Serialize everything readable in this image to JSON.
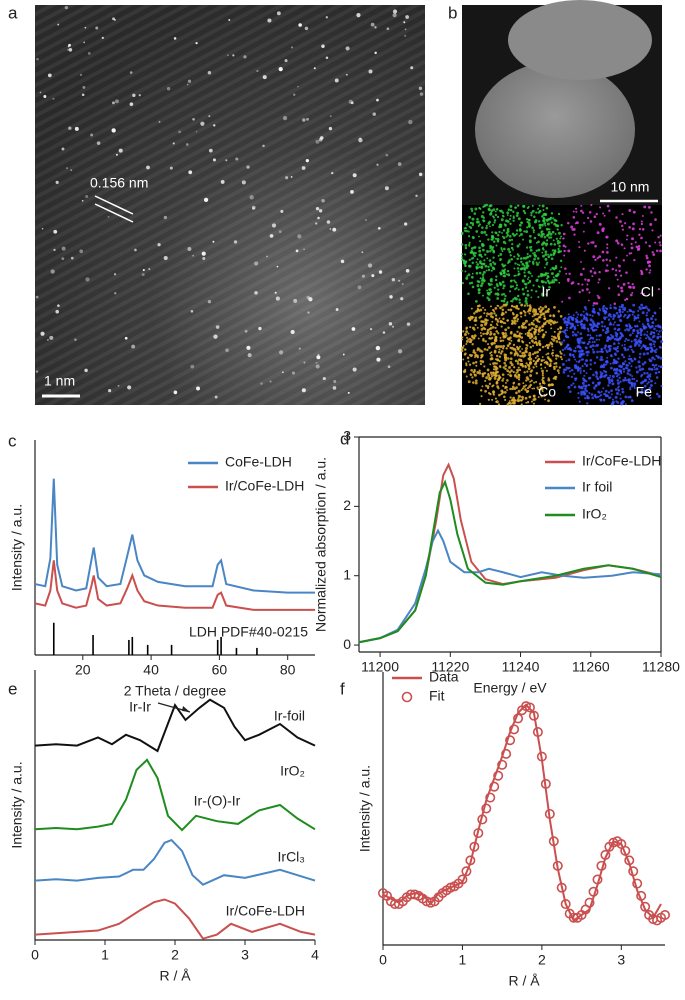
{
  "images": [
    {
      "label": "a",
      "annotation": "0.156 nm",
      "scale_bar": "1 nm"
    },
    {
      "label": "b",
      "scale_bar": "10 nm",
      "maps": [
        "Ir",
        "Cl",
        "Co",
        "Fe"
      ]
    }
  ],
  "chart_data": [
    {
      "type": "line",
      "label": "c",
      "xlabel": "2 Theta / degree",
      "ylabel": "Intensity / a.u.",
      "xlim": [
        6,
        88
      ],
      "xticks": [
        20,
        40,
        60,
        80
      ],
      "ylim": [
        0,
        10
      ],
      "series": [
        {
          "name": "CoFe-LDH",
          "color": "#4a86c5",
          "x": [
            6,
            9,
            10.5,
            11.5,
            12.5,
            14,
            18,
            21,
            22.5,
            23.2,
            24.5,
            27,
            31,
            33,
            34.5,
            36,
            38,
            42,
            50,
            58,
            59.5,
            60.5,
            62,
            70,
            80,
            88
          ],
          "values": [
            3.3,
            3.2,
            4.5,
            8.2,
            4.2,
            3.2,
            3.0,
            3.1,
            4.4,
            5.0,
            3.6,
            3.2,
            3.3,
            4.6,
            5.6,
            4.4,
            3.7,
            3.4,
            3.2,
            3.2,
            4.2,
            4.4,
            3.3,
            3.0,
            2.9,
            2.9
          ]
        },
        {
          "name": "Ir/CoFe-LDH",
          "color": "#c9504e",
          "x": [
            6,
            9,
            10.5,
            11.5,
            12.5,
            14,
            18,
            21,
            22.5,
            23.2,
            24.5,
            27,
            31,
            33,
            34.5,
            36,
            38,
            42,
            50,
            58,
            59.5,
            60.5,
            62,
            70,
            80,
            88
          ],
          "values": [
            2.4,
            2.3,
            3.0,
            4.4,
            3.0,
            2.4,
            2.2,
            2.3,
            3.2,
            3.7,
            2.6,
            2.3,
            2.4,
            3.1,
            3.7,
            3.0,
            2.5,
            2.3,
            2.2,
            2.2,
            2.8,
            2.9,
            2.3,
            2.1,
            2.1,
            2.1
          ]
        },
        {
          "name": "LDH PDF#40-0215",
          "color": "#000000",
          "style": "stem",
          "x": [
            11.5,
            23,
            33.5,
            34.5,
            39,
            46,
            59.5,
            60.5,
            65,
            71
          ],
          "values": [
            1.5,
            0.93,
            0.7,
            0.84,
            0.47,
            0.47,
            0.7,
            0.84,
            0.33,
            0.33
          ]
        }
      ]
    },
    {
      "type": "line",
      "label": "d",
      "xlabel": "Energy / eV",
      "ylabel": "Normalized absorption / a.u.",
      "xlim": [
        11194,
        11280
      ],
      "xticks": [
        11200,
        11220,
        11240,
        11260,
        11280
      ],
      "ylim": [
        -0.1,
        3
      ],
      "yticks": [
        0,
        1,
        2,
        3
      ],
      "series": [
        {
          "name": "Ir/CoFe-LDH",
          "color": "#c9504e",
          "x": [
            11194,
            11200,
            11205,
            11210,
            11213,
            11216,
            11218,
            11219.5,
            11221,
            11223,
            11226,
            11230,
            11235,
            11240,
            11250,
            11258,
            11265,
            11272,
            11280
          ],
          "values": [
            0.04,
            0.1,
            0.2,
            0.5,
            1.0,
            1.8,
            2.45,
            2.6,
            2.4,
            1.8,
            1.2,
            0.95,
            0.88,
            0.92,
            0.97,
            1.08,
            1.15,
            1.1,
            1.0
          ]
        },
        {
          "name": "Ir foil",
          "color": "#4a86c5",
          "x": [
            11194,
            11200,
            11205,
            11210,
            11213,
            11215,
            11216.5,
            11218,
            11220,
            11224,
            11228,
            11231,
            11235,
            11240,
            11246,
            11252,
            11258,
            11266,
            11272,
            11280
          ],
          "values": [
            0.04,
            0.1,
            0.22,
            0.6,
            1.1,
            1.5,
            1.65,
            1.5,
            1.2,
            1.05,
            1.05,
            1.1,
            1.05,
            0.98,
            1.05,
            1.0,
            0.97,
            1.0,
            1.05,
            1.02
          ]
        },
        {
          "name": "IrO₂",
          "color": "#1e8c1e",
          "x": [
            11194,
            11200,
            11205,
            11210,
            11213,
            11215,
            11217,
            11218.5,
            11220,
            11222,
            11225,
            11230,
            11235,
            11240,
            11250,
            11258,
            11265,
            11272,
            11280
          ],
          "values": [
            0.04,
            0.1,
            0.2,
            0.5,
            1.0,
            1.6,
            2.2,
            2.35,
            2.1,
            1.6,
            1.1,
            0.9,
            0.87,
            0.92,
            1.0,
            1.1,
            1.15,
            1.1,
            0.98
          ]
        }
      ]
    },
    {
      "type": "line",
      "label": "e",
      "xlabel": "R / Å",
      "ylabel": "Intensity / a.u.",
      "xlim": [
        0,
        4
      ],
      "xticks": [
        0,
        1,
        2,
        3,
        4
      ],
      "ylim": [
        0,
        10
      ],
      "annotations": [
        "Ir-Ir",
        "Ir-(O)-Ir"
      ],
      "series": [
        {
          "name": "Ir-foil",
          "color": "#111111",
          "x": [
            0,
            0.3,
            0.6,
            0.9,
            1.1,
            1.3,
            1.5,
            1.75,
            2.0,
            2.15,
            2.35,
            2.5,
            2.7,
            2.85,
            3.0,
            3.2,
            3.5,
            3.75,
            4.0
          ],
          "values": [
            7.2,
            7.25,
            7.2,
            7.5,
            7.25,
            7.6,
            7.4,
            7.0,
            8.7,
            8.15,
            8.6,
            8.9,
            8.6,
            7.9,
            7.4,
            7.6,
            8.0,
            7.5,
            7.2
          ]
        },
        {
          "name": "IrO₂",
          "color": "#1e8c1e",
          "x": [
            0,
            0.3,
            0.6,
            0.9,
            1.1,
            1.3,
            1.45,
            1.6,
            1.75,
            1.9,
            2.1,
            2.3,
            2.6,
            2.9,
            3.2,
            3.5,
            3.75,
            4.0
          ],
          "values": [
            4.1,
            4.15,
            4.1,
            4.2,
            4.3,
            5.2,
            6.3,
            6.67,
            6.0,
            4.6,
            4.07,
            4.6,
            4.4,
            4.3,
            4.8,
            5.0,
            4.5,
            4.1
          ]
        },
        {
          "name": "IrCl₃",
          "color": "#4a86c5",
          "x": [
            0,
            0.3,
            0.6,
            0.9,
            1.2,
            1.4,
            1.55,
            1.7,
            1.85,
            1.95,
            2.1,
            2.25,
            2.4,
            2.7,
            3.0,
            3.5,
            4.0
          ],
          "values": [
            2.2,
            2.25,
            2.2,
            2.3,
            2.35,
            2.6,
            2.6,
            3.0,
            3.6,
            3.7,
            3.3,
            2.4,
            2.05,
            2.4,
            2.3,
            2.6,
            2.2
          ]
        },
        {
          "name": "Ir/CoFe-LDH",
          "color": "#c9504e",
          "x": [
            0,
            0.3,
            0.6,
            0.9,
            1.2,
            1.5,
            1.7,
            1.85,
            2.0,
            2.2,
            2.4,
            2.6,
            2.8,
            3.1,
            3.5,
            3.8,
            4.0
          ],
          "values": [
            0.2,
            0.25,
            0.3,
            0.35,
            0.6,
            1.1,
            1.4,
            1.5,
            1.35,
            0.8,
            0.05,
            0.2,
            0.6,
            0.3,
            0.6,
            0.3,
            0.2
          ]
        }
      ]
    },
    {
      "type": "line",
      "label": "f",
      "xlabel": "R / Å",
      "ylabel": "Intensity / a.u.",
      "xlim": [
        0,
        3.55
      ],
      "xticks": [
        0,
        1,
        2,
        3
      ],
      "ylim": [
        0,
        10
      ],
      "series": [
        {
          "name": "Data",
          "color": "#c9504e",
          "x": [
            0,
            0.1,
            0.2,
            0.3,
            0.4,
            0.5,
            0.6,
            0.7,
            0.85,
            1.0,
            1.1,
            1.2,
            1.3,
            1.4,
            1.5,
            1.6,
            1.7,
            1.8,
            1.9,
            2.0,
            2.1,
            2.2,
            2.3,
            2.4,
            2.5,
            2.6,
            2.7,
            2.8,
            2.9,
            3.0,
            3.1,
            3.2,
            3.3,
            3.4,
            3.5
          ],
          "values": [
            1.85,
            1.7,
            1.55,
            1.8,
            1.9,
            1.85,
            1.5,
            1.9,
            2.1,
            2.3,
            3.0,
            4.2,
            5.3,
            6.1,
            6.9,
            7.8,
            8.5,
            8.8,
            8.5,
            6.8,
            4.6,
            2.8,
            1.5,
            0.9,
            1.1,
            1.3,
            2.2,
            3.2,
            3.8,
            3.7,
            3.0,
            2.0,
            1.3,
            1.0,
            1.5
          ]
        },
        {
          "name": "Fit",
          "color": "#c9504e",
          "style": "markers",
          "x": [
            0,
            0.05,
            0.1,
            0.15,
            0.2,
            0.25,
            0.3,
            0.35,
            0.4,
            0.45,
            0.5,
            0.55,
            0.6,
            0.65,
            0.7,
            0.75,
            0.8,
            0.85,
            0.9,
            0.95,
            1.0,
            1.05,
            1.1,
            1.15,
            1.2,
            1.25,
            1.3,
            1.35,
            1.4,
            1.45,
            1.5,
            1.55,
            1.6,
            1.65,
            1.7,
            1.75,
            1.8,
            1.85,
            1.9,
            1.95,
            2.0,
            2.05,
            2.1,
            2.15,
            2.2,
            2.25,
            2.3,
            2.35,
            2.4,
            2.45,
            2.5,
            2.55,
            2.6,
            2.65,
            2.7,
            2.75,
            2.8,
            2.85,
            2.9,
            2.95,
            3.0,
            3.05,
            3.1,
            3.15,
            3.2,
            3.25,
            3.3,
            3.35,
            3.4,
            3.45,
            3.5,
            3.55
          ],
          "values": [
            1.9,
            1.8,
            1.6,
            1.5,
            1.5,
            1.6,
            1.75,
            1.85,
            1.85,
            1.8,
            1.7,
            1.6,
            1.55,
            1.6,
            1.75,
            1.9,
            2.0,
            2.1,
            2.15,
            2.25,
            2.4,
            2.7,
            3.1,
            3.6,
            4.1,
            4.6,
            5.0,
            5.4,
            5.8,
            6.2,
            6.6,
            7.0,
            7.5,
            7.9,
            8.3,
            8.6,
            8.75,
            8.7,
            8.4,
            7.8,
            6.9,
            5.9,
            4.8,
            3.8,
            2.9,
            2.1,
            1.5,
            1.15,
            1.0,
            1.0,
            1.1,
            1.3,
            1.55,
            1.95,
            2.4,
            2.9,
            3.3,
            3.6,
            3.75,
            3.8,
            3.7,
            3.45,
            3.1,
            2.7,
            2.25,
            1.8,
            1.4,
            1.1,
            0.95,
            0.9,
            1.0,
            1.1
          ]
        }
      ]
    }
  ]
}
